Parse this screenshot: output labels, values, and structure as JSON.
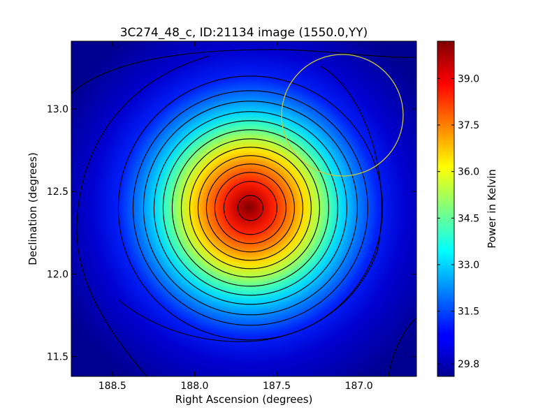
{
  "chart_data": {
    "type": "heatmap",
    "title": "3C274_48_c, ID:21134 image (1550.0,YY)",
    "xlabel": "Right Ascension (degrees)",
    "ylabel": "Declination (degrees)",
    "colorbar_label": "Power in Kelvin",
    "colormap": "jet",
    "xlim": [
      188.75,
      186.65
    ],
    "ylim": [
      11.38,
      13.41
    ],
    "x_ticks": [
      188.5,
      188.0,
      187.5,
      187.0
    ],
    "x_tick_labels": [
      "188.5",
      "188.0",
      "187.5",
      "187.0"
    ],
    "y_ticks": [
      11.5,
      12.0,
      12.5,
      13.0
    ],
    "y_tick_labels": [
      "11.5",
      "12.0",
      "12.5",
      "13.0"
    ],
    "colorbar_range": [
      29.4,
      40.2
    ],
    "colorbar_ticks": [
      29.8,
      31.5,
      33.0,
      34.5,
      36.0,
      37.5,
      39.0
    ],
    "colorbar_tick_labels": [
      "29.8",
      "31.5",
      "33.0",
      "34.5",
      "36.0",
      "37.5",
      "39.0"
    ],
    "source": {
      "ra": 187.66,
      "dec": 12.4,
      "peak_kelvin": 40.2,
      "background_kelvin": 29.6
    },
    "contour_levels_kelvin": [
      30.3,
      31.4,
      32.1,
      32.7,
      33.3,
      33.8,
      34.4,
      35.0,
      35.6,
      36.3,
      37.0,
      37.8,
      38.7,
      39.7
    ],
    "marker_circle": {
      "ra": 187.12,
      "dec": 12.96,
      "radius_deg": 0.37,
      "color": "#c8c83c"
    },
    "grid": false
  }
}
